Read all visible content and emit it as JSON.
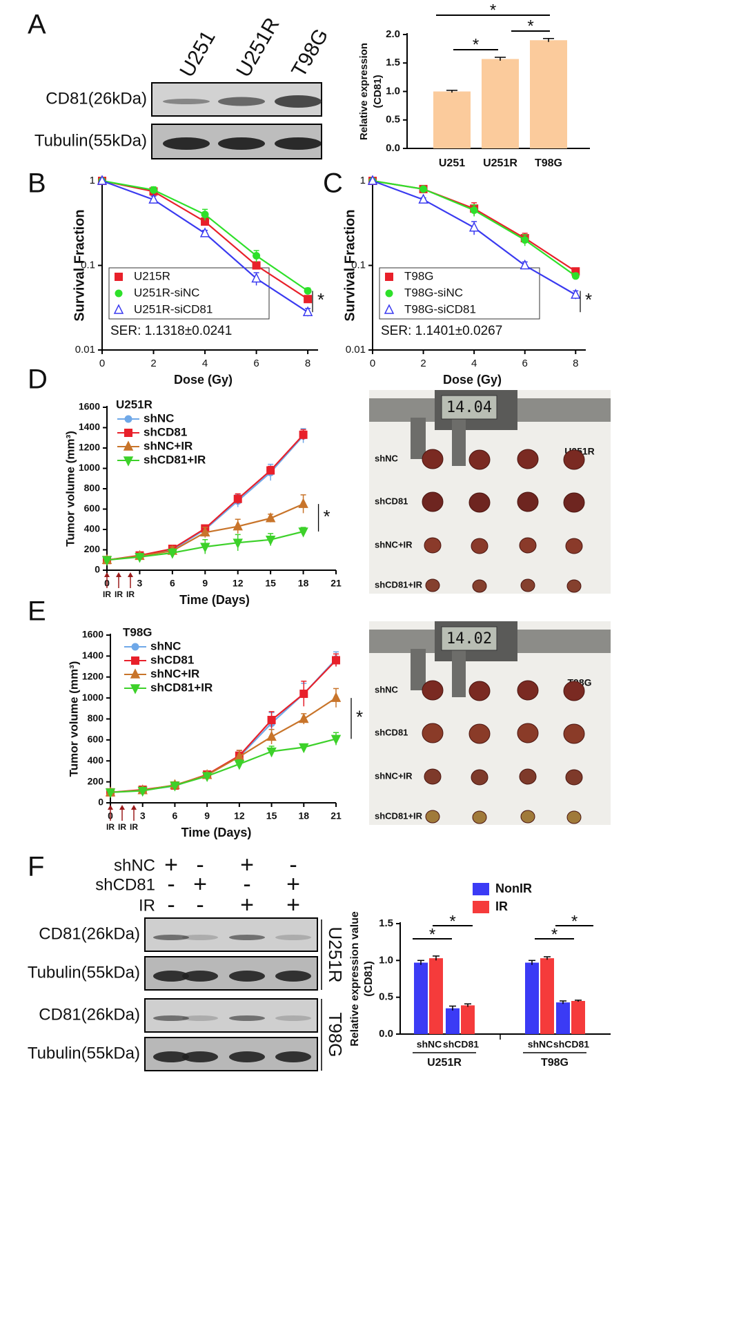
{
  "panel_letters": [
    "A",
    "B",
    "C",
    "D",
    "E",
    "F"
  ],
  "blot_a": {
    "lanes": [
      "U251",
      "U251R",
      "T98G"
    ],
    "rows": [
      "CD81(26kDa)",
      "Tubulin(55kDa)"
    ]
  },
  "photo_d": {
    "cell_line": "U251R",
    "caliper": "14.04",
    "rows": [
      "shNC",
      "shCD81",
      "shNC+IR",
      "shCD81+IR"
    ]
  },
  "photo_e": {
    "cell_line": "T98G",
    "caliper": "14.02",
    "rows": [
      "shNC",
      "shCD81",
      "shNC+IR",
      "shCD81+IR"
    ]
  },
  "blot_f": {
    "conditions": [
      {
        "name": "shNC",
        "signs": [
          "+",
          "-",
          "+",
          "-"
        ]
      },
      {
        "name": "shCD81",
        "signs": [
          "-",
          "+",
          "-",
          "+"
        ]
      },
      {
        "name": "IR",
        "signs": [
          "-",
          "-",
          "+",
          "+"
        ]
      }
    ],
    "rows": [
      "CD81(26kDa)",
      "Tubulin(55kDa)",
      "CD81(26kDa)",
      "Tubulin(55kDa)"
    ],
    "cell_lines": [
      "U251R",
      "T98G"
    ]
  },
  "chart_data": [
    {
      "type": "bar",
      "y_label": [
        "Relative expression",
        "(CD81)"
      ],
      "categories": [
        "U251",
        "U251R",
        "T98G"
      ],
      "values": [
        1.0,
        1.57,
        1.9
      ],
      "errors": [
        0.02,
        0.03,
        0.03
      ],
      "color": "#fbcb9c",
      "ylim": [
        0,
        2
      ],
      "yticks": [
        {
          "value": 0,
          "label": "0.0"
        },
        0.5,
        {
          "value": 1,
          "label": "1.0"
        },
        1.5,
        {
          "value": 2,
          "label": "2.0"
        }
      ],
      "annotations": [
        "*",
        "*",
        "*"
      ]
    },
    {
      "type": "line",
      "log_y": true,
      "x_label": "Dose (Gy)",
      "y_label": [
        "Survival Fraction"
      ],
      "xlim": [
        0,
        8.4
      ],
      "xticks": [
        0,
        2,
        4,
        6,
        8
      ],
      "ylim": [
        0.01,
        1
      ],
      "yticks": [
        0.01,
        0.1,
        1
      ],
      "x": [
        0,
        2,
        4,
        6,
        8
      ],
      "series": [
        {
          "name": "U215R",
          "color": "#e8202a",
          "marker": "square",
          "values": [
            1,
            0.75,
            0.33,
            0.1,
            0.04
          ],
          "errors": [
            0.02,
            0.06,
            0.03,
            0.01,
            0.004
          ]
        },
        {
          "name": "U251R-siNC",
          "color": "#2ee02a",
          "marker": "circle",
          "values": [
            1,
            0.78,
            0.4,
            0.13,
            0.05
          ],
          "errors": [
            0.02,
            0.07,
            0.06,
            0.02,
            0.004
          ]
        },
        {
          "name": "U251R-siCD81",
          "color": "#3a3af0",
          "marker": "triangle-open",
          "values": [
            1,
            0.6,
            0.24,
            0.07,
            0.028
          ],
          "errors": [
            0.02,
            0.06,
            0.02,
            0.012,
            0.003
          ]
        }
      ],
      "annotation": "SER: 1.1318±0.0241",
      "significance": "*"
    },
    {
      "type": "line",
      "log_y": true,
      "x_label": "Dose (Gy)",
      "y_label": [
        "Survival Fraction"
      ],
      "xlim": [
        0,
        8.4
      ],
      "xticks": [
        0,
        2,
        4,
        6,
        8
      ],
      "ylim": [
        0.01,
        1
      ],
      "yticks": [
        0.01,
        0.1,
        1
      ],
      "x": [
        0,
        2,
        4,
        6,
        8
      ],
      "series": [
        {
          "name": "T98G",
          "color": "#e8202a",
          "marker": "square",
          "values": [
            1,
            0.8,
            0.47,
            0.21,
            0.085
          ],
          "errors": [
            0.02,
            0.05,
            0.08,
            0.03,
            0.005
          ]
        },
        {
          "name": "T98G-siNC",
          "color": "#2ee02a",
          "marker": "circle",
          "values": [
            1,
            0.8,
            0.45,
            0.2,
            0.075
          ],
          "errors": [
            0.02,
            0.05,
            0.07,
            0.03,
            0.006
          ]
        },
        {
          "name": "T98G-siCD81",
          "color": "#3a3af0",
          "marker": "triangle-open",
          "values": [
            1,
            0.6,
            0.28,
            0.1,
            0.045
          ],
          "errors": [
            0.02,
            0.03,
            0.05,
            0.01,
            0.005
          ]
        }
      ],
      "annotation": "SER: 1.1401±0.0267",
      "significance": "*"
    },
    {
      "type": "line",
      "title": "U251R",
      "x_label": "Time (Days)",
      "y_label": [
        "Tumor volume (mm³)"
      ],
      "xlim": [
        0,
        21
      ],
      "xticks": [
        0,
        3,
        6,
        9,
        12,
        15,
        18,
        21
      ],
      "ylim": [
        0,
        1600
      ],
      "yticks": [
        0,
        200,
        400,
        600,
        800,
        1000,
        1200,
        1400,
        1600
      ],
      "x": [
        0,
        3,
        6,
        9,
        12,
        15,
        18
      ],
      "series": [
        {
          "name": "shNC",
          "color": "#6fa8e8",
          "marker": "circle",
          "values": [
            100,
            140,
            200,
            400,
            680,
            960,
            1320
          ],
          "errors": [
            10,
            15,
            20,
            40,
            60,
            80,
            70
          ]
        },
        {
          "name": "shCD81",
          "color": "#e8202a",
          "marker": "square",
          "values": [
            100,
            145,
            210,
            410,
            700,
            980,
            1330
          ],
          "errors": [
            10,
            15,
            20,
            30,
            50,
            40,
            50
          ]
        },
        {
          "name": "shNC+IR",
          "color": "#c8742a",
          "marker": "triangle",
          "values": [
            100,
            140,
            190,
            370,
            430,
            510,
            650
          ],
          "errors": [
            10,
            15,
            40,
            50,
            70,
            40,
            90
          ]
        },
        {
          "name": "shCD81+IR",
          "color": "#3dd12a",
          "marker": "triangle-down",
          "values": [
            100,
            130,
            170,
            230,
            270,
            300,
            380
          ],
          "errors": [
            10,
            15,
            40,
            70,
            80,
            60,
            40
          ]
        }
      ],
      "treatments": [
        "IR",
        "IR",
        "IR"
      ],
      "significance": "*"
    },
    {
      "type": "line",
      "title": "T98G",
      "x_label": "Time (Days)",
      "y_label": [
        "Tumor volume (mm³)"
      ],
      "xlim": [
        0,
        21
      ],
      "xticks": [
        0,
        3,
        6,
        9,
        12,
        15,
        18,
        21
      ],
      "ylim": [
        0,
        1600
      ],
      "yticks": [
        0,
        200,
        400,
        600,
        800,
        1000,
        1200,
        1400,
        1600
      ],
      "x": [
        0,
        3,
        6,
        9,
        12,
        15,
        18,
        21
      ],
      "series": [
        {
          "name": "shNC",
          "color": "#6fa8e8",
          "marker": "circle",
          "values": [
            100,
            120,
            160,
            270,
            440,
            760,
            1040,
            1370
          ],
          "errors": [
            10,
            20,
            20,
            20,
            60,
            100,
            100,
            70
          ]
        },
        {
          "name": "shCD81",
          "color": "#e8202a",
          "marker": "square",
          "values": [
            100,
            125,
            165,
            270,
            450,
            790,
            1040,
            1360
          ],
          "errors": [
            10,
            20,
            20,
            20,
            50,
            80,
            120,
            60
          ]
        },
        {
          "name": "shNC+IR",
          "color": "#c8742a",
          "marker": "triangle",
          "values": [
            100,
            120,
            170,
            265,
            440,
            630,
            800,
            1000
          ],
          "errors": [
            10,
            20,
            20,
            20,
            60,
            70,
            50,
            90
          ]
        },
        {
          "name": "shCD81+IR",
          "color": "#3dd12a",
          "marker": "triangle-down",
          "values": [
            100,
            115,
            165,
            255,
            370,
            490,
            530,
            610
          ],
          "errors": [
            10,
            20,
            20,
            20,
            40,
            50,
            30,
            60
          ]
        }
      ],
      "treatments": [
        "IR",
        "IR",
        "IR"
      ],
      "significance": "*"
    },
    {
      "type": "grouped_bar",
      "y_label": [
        "Relative expression value",
        "(CD81)"
      ],
      "categories": [
        "shNC",
        "shCD81",
        "shNC",
        "shCD81"
      ],
      "groups": [
        "U251R",
        "T98G"
      ],
      "ylim": [
        0,
        1.5
      ],
      "yticks": [
        {
          "value": 0,
          "label": "0.0"
        },
        0.5,
        {
          "value": 1,
          "label": "1.0"
        },
        1.5
      ],
      "series": [
        {
          "name": "NonIR",
          "color": "#3b3bf5",
          "values": [
            0.97,
            0.35,
            0.97,
            0.43
          ],
          "errors": [
            0.03,
            0.03,
            0.03,
            0.02
          ]
        },
        {
          "name": "IR",
          "color": "#f53b3b",
          "values": [
            1.03,
            0.39,
            1.03,
            0.45
          ],
          "errors": [
            0.03,
            0.02,
            0.02,
            0.01
          ]
        }
      ],
      "annotations": [
        "*",
        "*",
        "*",
        "*"
      ]
    }
  ]
}
